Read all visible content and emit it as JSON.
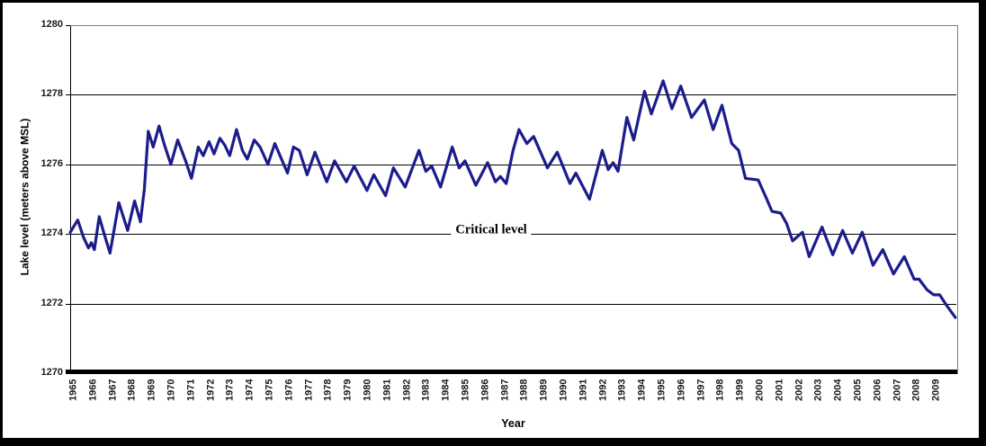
{
  "chart_data": {
    "type": "line",
    "title": "",
    "xlabel": "Year",
    "ylabel": "Lake level (meters above MSL)",
    "annotation": {
      "label": "Critical level",
      "level": 1274,
      "x_center_year": 1986.3
    },
    "x_tick_labels": [
      1965,
      1966,
      1967,
      1968,
      1969,
      1970,
      1971,
      1972,
      1973,
      1974,
      1975,
      1976,
      1977,
      1978,
      1979,
      1980,
      1981,
      1982,
      1983,
      1984,
      1985,
      1986,
      1987,
      1988,
      1989,
      1990,
      1991,
      1992,
      1993,
      1994,
      1995,
      1996,
      1997,
      1998,
      1999,
      2000,
      2001,
      2002,
      2003,
      2004,
      2005,
      2006,
      2007,
      2008,
      2009
    ],
    "y_tick_labels": [
      1270,
      1272,
      1274,
      1276,
      1278,
      1280
    ],
    "ylim": [
      1270,
      1280
    ],
    "xlim": [
      1964.82,
      2010.0
    ],
    "grid": "horizontal-only",
    "legend": "none",
    "line_color": "#1C1C8C",
    "series": [
      {
        "name": "Lake level",
        "points": [
          [
            1964.82,
            1274.05
          ],
          [
            1965.2,
            1274.4
          ],
          [
            1965.5,
            1273.9
          ],
          [
            1965.75,
            1273.6
          ],
          [
            1965.9,
            1273.75
          ],
          [
            1966.05,
            1273.55
          ],
          [
            1966.3,
            1274.5
          ],
          [
            1966.55,
            1274.0
          ],
          [
            1966.85,
            1273.45
          ],
          [
            1967.3,
            1274.9
          ],
          [
            1967.75,
            1274.1
          ],
          [
            1968.1,
            1274.95
          ],
          [
            1968.4,
            1274.35
          ],
          [
            1968.6,
            1275.3
          ],
          [
            1968.8,
            1276.95
          ],
          [
            1969.05,
            1276.5
          ],
          [
            1969.35,
            1277.1
          ],
          [
            1969.6,
            1276.6
          ],
          [
            1969.95,
            1276.0
          ],
          [
            1970.3,
            1276.7
          ],
          [
            1970.7,
            1276.1
          ],
          [
            1971.0,
            1275.6
          ],
          [
            1971.35,
            1276.5
          ],
          [
            1971.6,
            1276.25
          ],
          [
            1971.9,
            1276.65
          ],
          [
            1972.15,
            1276.3
          ],
          [
            1972.45,
            1276.75
          ],
          [
            1972.7,
            1276.55
          ],
          [
            1972.95,
            1276.25
          ],
          [
            1973.3,
            1277.0
          ],
          [
            1973.6,
            1276.4
          ],
          [
            1973.85,
            1276.15
          ],
          [
            1974.2,
            1276.7
          ],
          [
            1974.5,
            1276.5
          ],
          [
            1974.9,
            1276.0
          ],
          [
            1975.25,
            1276.6
          ],
          [
            1975.9,
            1275.75
          ],
          [
            1976.2,
            1276.5
          ],
          [
            1976.5,
            1276.4
          ],
          [
            1976.9,
            1275.7
          ],
          [
            1977.3,
            1276.35
          ],
          [
            1977.9,
            1275.5
          ],
          [
            1978.3,
            1276.1
          ],
          [
            1978.9,
            1275.5
          ],
          [
            1979.3,
            1275.95
          ],
          [
            1979.95,
            1275.25
          ],
          [
            1980.3,
            1275.7
          ],
          [
            1980.9,
            1275.1
          ],
          [
            1981.3,
            1275.9
          ],
          [
            1981.9,
            1275.35
          ],
          [
            1982.6,
            1276.4
          ],
          [
            1982.95,
            1275.8
          ],
          [
            1983.25,
            1275.95
          ],
          [
            1983.7,
            1275.35
          ],
          [
            1984.3,
            1276.5
          ],
          [
            1984.65,
            1275.9
          ],
          [
            1984.95,
            1276.1
          ],
          [
            1985.5,
            1275.4
          ],
          [
            1986.1,
            1276.05
          ],
          [
            1986.5,
            1275.5
          ],
          [
            1986.75,
            1275.65
          ],
          [
            1987.05,
            1275.45
          ],
          [
            1987.4,
            1276.4
          ],
          [
            1987.7,
            1277.0
          ],
          [
            1988.1,
            1276.6
          ],
          [
            1988.45,
            1276.8
          ],
          [
            1989.15,
            1275.9
          ],
          [
            1989.65,
            1276.35
          ],
          [
            1990.3,
            1275.45
          ],
          [
            1990.6,
            1275.75
          ],
          [
            1991.3,
            1275.0
          ],
          [
            1991.95,
            1276.4
          ],
          [
            1992.25,
            1275.85
          ],
          [
            1992.5,
            1276.05
          ],
          [
            1992.75,
            1275.8
          ],
          [
            1993.2,
            1277.35
          ],
          [
            1993.55,
            1276.7
          ],
          [
            1994.1,
            1278.1
          ],
          [
            1994.45,
            1277.45
          ],
          [
            1995.05,
            1278.4
          ],
          [
            1995.5,
            1277.6
          ],
          [
            1995.95,
            1278.25
          ],
          [
            1996.5,
            1277.35
          ],
          [
            1997.15,
            1277.85
          ],
          [
            1997.6,
            1277.0
          ],
          [
            1998.05,
            1277.7
          ],
          [
            1998.55,
            1276.6
          ],
          [
            1998.9,
            1276.4
          ],
          [
            1999.25,
            1275.6
          ],
          [
            1999.9,
            1275.55
          ],
          [
            2000.3,
            1275.05
          ],
          [
            2000.6,
            1274.65
          ],
          [
            2001.05,
            1274.6
          ],
          [
            2001.35,
            1274.3
          ],
          [
            2001.65,
            1273.8
          ],
          [
            2002.15,
            1274.05
          ],
          [
            2002.5,
            1273.35
          ],
          [
            2003.15,
            1274.2
          ],
          [
            2003.7,
            1273.4
          ],
          [
            2004.2,
            1274.1
          ],
          [
            2004.7,
            1273.45
          ],
          [
            2005.2,
            1274.05
          ],
          [
            2005.75,
            1273.1
          ],
          [
            2006.25,
            1273.55
          ],
          [
            2006.8,
            1272.85
          ],
          [
            2007.35,
            1273.35
          ],
          [
            2007.85,
            1272.7
          ],
          [
            2008.1,
            1272.7
          ],
          [
            2008.5,
            1272.4
          ],
          [
            2008.85,
            1272.25
          ],
          [
            2009.15,
            1272.25
          ],
          [
            2009.5,
            1271.95
          ],
          [
            2009.95,
            1271.6
          ]
        ]
      }
    ]
  }
}
